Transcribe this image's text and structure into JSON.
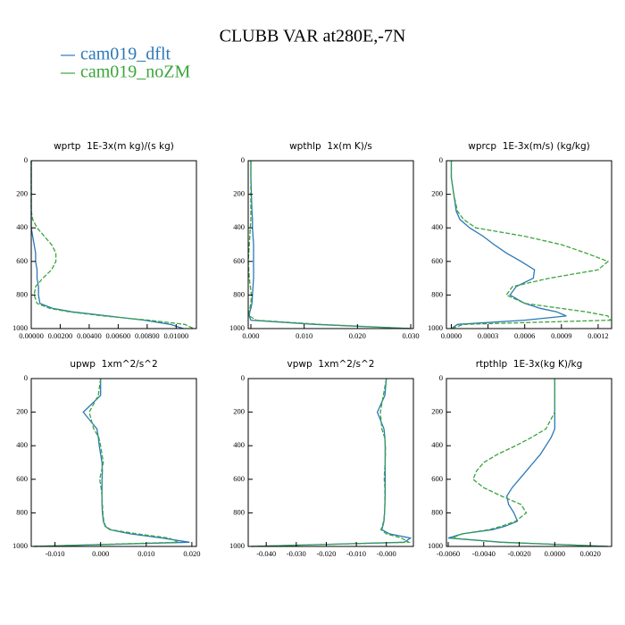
{
  "title": "CLUBB VAR at280E,-7N",
  "chart_data": [
    {
      "type": "profile",
      "title": "wprtp  1E-3x(m kg)/(s kg)",
      "y": [
        0,
        100,
        200,
        300,
        350,
        400,
        450,
        500,
        550,
        600,
        650,
        700,
        750,
        800,
        850,
        880,
        900,
        925,
        950,
        975,
        1000
      ],
      "ylim": [
        0,
        1000
      ],
      "y_inverted": true,
      "yticks": [
        0,
        200,
        400,
        600,
        800,
        1000
      ],
      "xlim": [
        0,
        0.0114
      ],
      "xticks": [
        {
          "value": 0,
          "label": "0.00000"
        },
        {
          "value": 0.002,
          "label": "0.00200"
        },
        {
          "value": 0.004,
          "label": "0.00400"
        },
        {
          "value": 0.006,
          "label": "0.00600"
        },
        {
          "value": 0.008,
          "label": "0.00800"
        },
        {
          "value": 0.01,
          "label": "0.01000"
        }
      ],
      "series": [
        {
          "name": "cam019_dflt",
          "color": "#2b78b8",
          "style": "solid",
          "values": [
            0,
            0,
            0,
            0,
            0,
            0,
            0.0001,
            0.0002,
            0.0003,
            0.0003,
            0.0004,
            0.0004,
            0.0005,
            0.0005,
            0.0006,
            0.0015,
            0.0028,
            0.0053,
            0.0078,
            0.0096,
            0.0105
          ]
        },
        {
          "name": "cam019_noZM",
          "color": "#3ba53b",
          "style": "dashed",
          "values": [
            0,
            0,
            0,
            0,
            0.0001,
            0.0004,
            0.0009,
            0.0014,
            0.0017,
            0.0017,
            0.0014,
            0.0008,
            0.0003,
            0.0002,
            0.0004,
            0.0013,
            0.0026,
            0.005,
            0.0081,
            0.0106,
            0.0112
          ]
        }
      ]
    },
    {
      "type": "profile",
      "title": "wpthlp  1x(m K)/s",
      "y": [
        0,
        100,
        200,
        300,
        350,
        400,
        450,
        500,
        550,
        600,
        650,
        700,
        750,
        800,
        850,
        880,
        900,
        925,
        950,
        975,
        1000
      ],
      "ylim": [
        0,
        1000
      ],
      "y_inverted": true,
      "yticks": [
        0,
        200,
        400,
        600,
        800,
        1000
      ],
      "xlim": [
        -0.0005,
        0.0305
      ],
      "xticks": [
        {
          "value": 0,
          "label": "0.000"
        },
        {
          "value": 0.01,
          "label": "0.010"
        },
        {
          "value": 0.02,
          "label": "0.020"
        },
        {
          "value": 0.03,
          "label": "0.030"
        }
      ],
      "series": [
        {
          "name": "cam019_dflt",
          "color": "#2b78b8",
          "style": "solid",
          "values": [
            0,
            0,
            0.0001,
            0.0002,
            0.0003,
            0.0003,
            0.0004,
            0.0005,
            0.0005,
            0.0005,
            0.0005,
            0.0005,
            0.0004,
            0.0003,
            0.0002,
            0,
            -0.0002,
            -0.0003,
            0,
            0.012,
            0.03
          ]
        },
        {
          "name": "cam019_noZM",
          "color": "#3ba53b",
          "style": "dashed",
          "values": [
            0,
            0,
            0,
            0,
            0,
            -0.0001,
            -0.0002,
            -0.0003,
            -0.0004,
            -0.0005,
            -0.0004,
            -0.0003,
            -0.0001,
            0.0001,
            0,
            -0.0002,
            -0.0003,
            -0.0003,
            0.001,
            0.013,
            0.03
          ]
        }
      ]
    },
    {
      "type": "profile",
      "title": "wprcp  1E-3x(m/s) (kg/kg)",
      "y": [
        0,
        100,
        200,
        300,
        350,
        400,
        450,
        500,
        550,
        600,
        650,
        700,
        750,
        800,
        850,
        880,
        900,
        925,
        950,
        975,
        1000
      ],
      "ylim": [
        0,
        1000
      ],
      "y_inverted": true,
      "yticks": [
        0,
        200,
        400,
        600,
        800,
        1000
      ],
      "xlim": [
        -4e-05,
        0.00131
      ],
      "xticks": [
        {
          "value": 0,
          "label": "0.0000"
        },
        {
          "value": 0.0003,
          "label": "0.0003"
        },
        {
          "value": 0.0006,
          "label": "0.0006"
        },
        {
          "value": 0.0009,
          "label": "0.0009"
        },
        {
          "value": 0.0012,
          "label": "0.0012"
        }
      ],
      "series": [
        {
          "name": "cam019_dflt",
          "color": "#2b78b8",
          "style": "solid",
          "values": [
            0,
            0,
            2e-05,
            4e-05,
            7e-05,
            0.00015,
            0.00026,
            0.00035,
            0.00045,
            0.00057,
            0.00068,
            0.00067,
            0.00053,
            0.00048,
            0.0006,
            0.00073,
            0.00086,
            0.00094,
            0.0006,
            5e-05,
            0
          ]
        },
        {
          "name": "cam019_noZM",
          "color": "#3ba53b",
          "style": "dashed",
          "values": [
            0,
            0,
            2e-05,
            5e-05,
            0.0001,
            0.0002,
            0.0006,
            0.0009,
            0.0011,
            0.00128,
            0.0012,
            0.0008,
            0.0005,
            0.00045,
            0.0006,
            0.0009,
            0.0011,
            0.00128,
            0.0013,
            0.0001,
            0
          ]
        }
      ]
    },
    {
      "type": "profile",
      "title": "upwp  1xm^2/s^2",
      "y": [
        0,
        100,
        200,
        300,
        350,
        400,
        450,
        500,
        550,
        600,
        650,
        700,
        750,
        800,
        850,
        880,
        900,
        925,
        950,
        975,
        1000
      ],
      "ylim": [
        0,
        1000
      ],
      "y_inverted": true,
      "yticks": [
        0,
        200,
        400,
        600,
        800,
        1000
      ],
      "xlim": [
        -0.0152,
        0.021
      ],
      "xticks": [
        {
          "value": -0.01,
          "label": "-0.010"
        },
        {
          "value": 0,
          "label": "0.000"
        },
        {
          "value": 0.01,
          "label": "0.010"
        },
        {
          "value": 0.02,
          "label": "0.020"
        }
      ],
      "series": [
        {
          "name": "cam019_dflt",
          "color": "#2b78b8",
          "style": "solid",
          "values": [
            0,
            0,
            -0.0038,
            -0.0008,
            -0.0005,
            -0.0003,
            0,
            0.0003,
            0.0004,
            0.0003,
            0.0003,
            0.0003,
            0.0003,
            0.0004,
            0.0006,
            0.001,
            0.002,
            0.0065,
            0.0135,
            0.0195,
            -0.0145
          ]
        },
        {
          "name": "cam019_noZM",
          "color": "#3ba53b",
          "style": "dashed",
          "values": [
            0,
            -0.0005,
            -0.0025,
            -0.0015,
            -0.0004,
            0,
            0.0003,
            0.0006,
            0.0002,
            -0.0002,
            0.0001,
            0.0003,
            0.0004,
            0.0005,
            0.0007,
            0.0011,
            0.0022,
            0.008,
            0.015,
            0.017,
            -0.015
          ]
        }
      ]
    },
    {
      "type": "profile",
      "title": "vpwp  1xm^2/s^2",
      "y": [
        0,
        100,
        200,
        300,
        350,
        400,
        450,
        500,
        550,
        600,
        650,
        700,
        750,
        800,
        850,
        880,
        900,
        925,
        950,
        975,
        1000
      ],
      "ylim": [
        0,
        1000
      ],
      "y_inverted": true,
      "yticks": [
        0,
        200,
        400,
        600,
        800,
        1000
      ],
      "xlim": [
        -0.046,
        0.009
      ],
      "xticks": [
        {
          "value": -0.04,
          "label": "-0.040"
        },
        {
          "value": -0.03,
          "label": "-0.030"
        },
        {
          "value": -0.02,
          "label": "-0.020"
        },
        {
          "value": -0.01,
          "label": "-0.010"
        },
        {
          "value": 0,
          "label": "-0.000"
        }
      ],
      "series": [
        {
          "name": "cam019_dflt",
          "color": "#2b78b8",
          "style": "solid",
          "values": [
            0,
            -0.0005,
            -0.003,
            -0.0008,
            -0.0005,
            -0.0004,
            -0.0004,
            -0.0004,
            -0.0004,
            -0.0004,
            -0.0004,
            -0.0004,
            -0.0005,
            -0.0006,
            -0.0008,
            -0.0012,
            -0.0015,
            0.001,
            0.008,
            0.006,
            -0.045
          ]
        },
        {
          "name": "cam019_noZM",
          "color": "#3ba53b",
          "style": "dashed",
          "values": [
            0,
            -0.001,
            -0.002,
            -0.0015,
            -0.0006,
            -0.0003,
            -0.0003,
            -0.0004,
            -0.0006,
            -0.0007,
            -0.0005,
            -0.0005,
            -0.0005,
            -0.0006,
            -0.0009,
            -0.0014,
            -0.0018,
            0,
            0.005,
            0.0075,
            -0.045
          ]
        }
      ]
    },
    {
      "type": "profile",
      "title": "rtpthlp  1E-3x(kg K)/kg",
      "y": [
        0,
        100,
        200,
        300,
        350,
        400,
        450,
        500,
        550,
        600,
        650,
        700,
        750,
        800,
        850,
        880,
        900,
        925,
        950,
        975,
        1000
      ],
      "ylim": [
        0,
        1000
      ],
      "y_inverted": true,
      "yticks": [
        0,
        200,
        400,
        600,
        800,
        1000
      ],
      "xlim": [
        -0.0061,
        0.0032
      ],
      "xticks": [
        {
          "value": -0.006,
          "label": "-0.0060"
        },
        {
          "value": -0.004,
          "label": "-0.0040"
        },
        {
          "value": -0.002,
          "label": "-0.0020"
        },
        {
          "value": 0,
          "label": "0.0000"
        },
        {
          "value": 0.002,
          "label": "0.0020"
        }
      ],
      "series": [
        {
          "name": "cam019_dflt",
          "color": "#2b78b8",
          "style": "solid",
          "values": [
            0,
            0,
            0,
            0,
            -0.0002,
            -0.0005,
            -0.0008,
            -0.0012,
            -0.0016,
            -0.002,
            -0.0024,
            -0.0027,
            -0.0026,
            -0.0023,
            -0.0021,
            -0.0028,
            -0.0035,
            -0.0052,
            -0.006,
            -0.003,
            0.003
          ]
        },
        {
          "name": "cam019_noZM",
          "color": "#3ba53b",
          "style": "dashed",
          "values": [
            0,
            0,
            0,
            -0.0005,
            -0.0013,
            -0.0022,
            -0.0032,
            -0.004,
            -0.0044,
            -0.0046,
            -0.004,
            -0.003,
            -0.0019,
            -0.0016,
            -0.0022,
            -0.003,
            -0.0037,
            -0.0052,
            -0.0058,
            -0.003,
            0.003
          ]
        }
      ]
    }
  ]
}
